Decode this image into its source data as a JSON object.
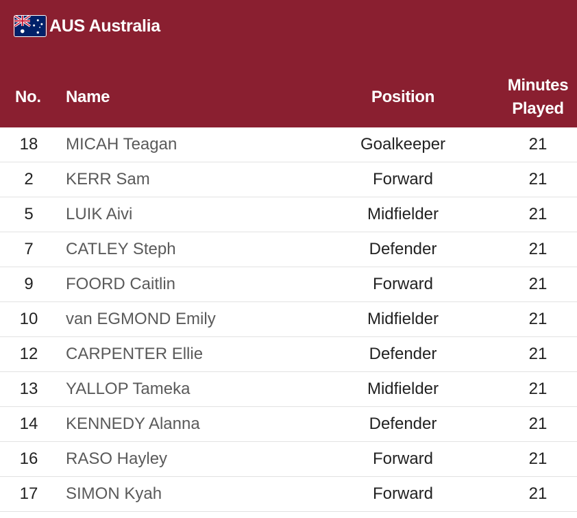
{
  "team": {
    "code_and_name": "AUS Australia",
    "flag_icon": "australia-flag-icon"
  },
  "columns": {
    "number": "No.",
    "name": "Name",
    "position": "Position",
    "minutes_line1": "Minutes",
    "minutes_line2": "Played"
  },
  "players": [
    {
      "number": "18",
      "name": "MICAH Teagan",
      "position": "Goalkeeper",
      "minutes": "21"
    },
    {
      "number": "2",
      "name": "KERR Sam",
      "position": "Forward",
      "minutes": "21"
    },
    {
      "number": "5",
      "name": "LUIK Aivi",
      "position": "Midfielder",
      "minutes": "21"
    },
    {
      "number": "7",
      "name": "CATLEY Steph",
      "position": "Defender",
      "minutes": "21"
    },
    {
      "number": "9",
      "name": "FOORD Caitlin",
      "position": "Forward",
      "minutes": "21"
    },
    {
      "number": "10",
      "name": "van EGMOND Emily",
      "position": "Midfielder",
      "minutes": "21"
    },
    {
      "number": "12",
      "name": "CARPENTER Ellie",
      "position": "Defender",
      "minutes": "21"
    },
    {
      "number": "13",
      "name": "YALLOP Tameka",
      "position": "Midfielder",
      "minutes": "21"
    },
    {
      "number": "14",
      "name": "KENNEDY Alanna",
      "position": "Defender",
      "minutes": "21"
    },
    {
      "number": "16",
      "name": "RASO Hayley",
      "position": "Forward",
      "minutes": "21"
    },
    {
      "number": "17",
      "name": "SIMON Kyah",
      "position": "Forward",
      "minutes": "21"
    }
  ],
  "colors": {
    "header_background": "#8a1f30",
    "header_text": "#ffffff",
    "name_text": "#5a5a5a",
    "row_divider": "#e2e2e2"
  }
}
